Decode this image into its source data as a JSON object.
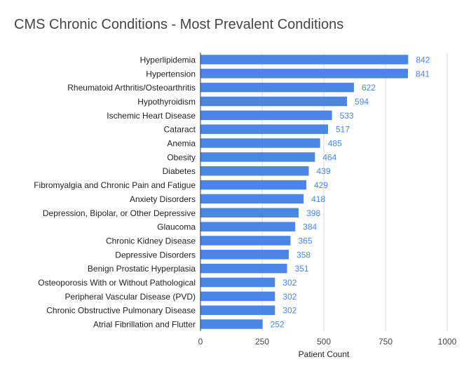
{
  "chart_data": {
    "type": "bar",
    "orientation": "horizontal",
    "title": "CMS Chronic Conditions - Most Prevalent Conditions",
    "xlabel": "Patient Count",
    "ylabel": "",
    "xlim": [
      0,
      1000
    ],
    "xticks": [
      0,
      250,
      500,
      750,
      1000
    ],
    "grid": true,
    "bar_color": "#4a86e8",
    "label_color": "#4a86e8",
    "categories": [
      "Hyperlipidemia",
      "Hypertension",
      "Rheumatoid Arthritis/Osteoarthritis",
      "Hypothyroidism",
      "Ischemic Heart Disease",
      "Cataract",
      "Anemia",
      "Obesity",
      "Diabetes",
      "Fibromyalgia and Chronic Pain and Fatigue",
      "Anxiety Disorders",
      "Depression, Bipolar, or Other Depressive",
      "Glaucoma",
      "Chronic Kidney Disease",
      "Depressive Disorders",
      "Benign Prostatic Hyperplasia",
      "Osteoporosis With or Without Pathological",
      "Peripheral Vascular Disease (PVD)",
      "Chronic Obstructive Pulmonary Disease",
      "Atrial Fibrillation and Flutter"
    ],
    "values": [
      842,
      841,
      622,
      594,
      533,
      517,
      485,
      464,
      439,
      429,
      418,
      398,
      384,
      365,
      358,
      351,
      302,
      302,
      302,
      252
    ]
  }
}
